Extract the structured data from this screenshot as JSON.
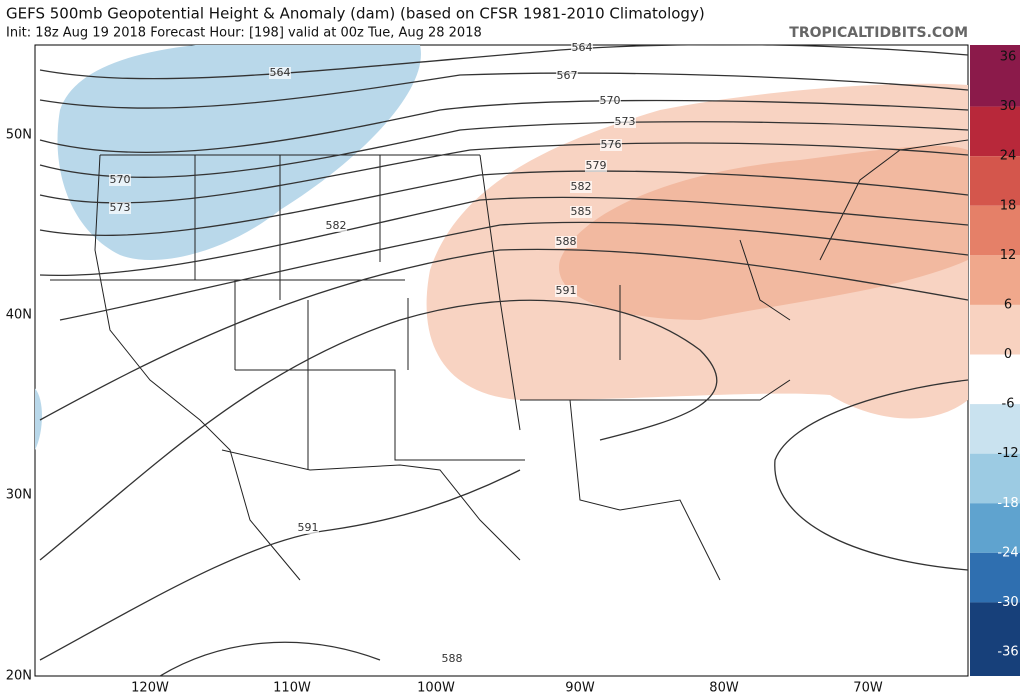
{
  "header": {
    "title": "GEFS 500mb Geopotential Height & Anomaly (dam) (based on CFSR 1981-2010 Climatology)",
    "subtitle": "Init: 18z Aug 19 2018   Forecast Hour: [198]   valid at 00z Tue, Aug 28 2018",
    "credit": "TROPICALTIDBITS.COM"
  },
  "map": {
    "lat_labels": [
      "50N",
      "40N",
      "30N",
      "20N"
    ],
    "lon_labels": [
      "120W",
      "110W",
      "100W",
      "90W",
      "80W",
      "70W"
    ],
    "contour_labels": [
      "564",
      "564",
      "567",
      "570",
      "573",
      "576",
      "579",
      "582",
      "585",
      "588",
      "591",
      "570",
      "573",
      "582",
      "591",
      "588"
    ]
  },
  "colorbar": {
    "ticks": [
      36,
      30,
      24,
      18,
      12,
      6,
      0,
      -6,
      -12,
      -18,
      -24,
      -30,
      -36
    ],
    "colors": [
      "#8b1a4a",
      "#b8283a",
      "#d4564c",
      "#e58068",
      "#f0a88c",
      "#f8d2c0",
      "#ffffff",
      "#c9e2ef",
      "#9ccbe3",
      "#5fa3cf",
      "#2f6fb0",
      "#17407a"
    ]
  }
}
